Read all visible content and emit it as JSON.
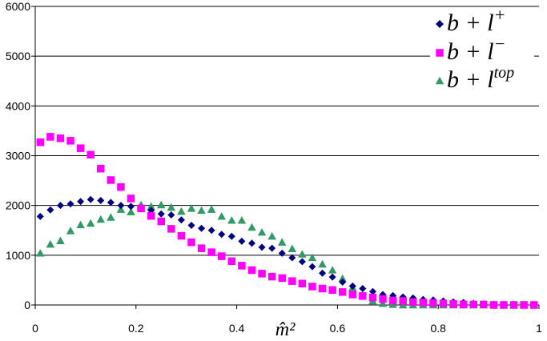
{
  "chart_data": {
    "type": "scatter",
    "title": "",
    "xlabel": "m̂²",
    "ylabel": "",
    "xlim": [
      0,
      1
    ],
    "ylim": [
      0,
      6000
    ],
    "xticks": [
      "0",
      "0.2",
      "0.4",
      "0.6",
      "0.8",
      "1"
    ],
    "yticks": [
      "0",
      "1000",
      "2000",
      "3000",
      "4000",
      "5000",
      "6000"
    ],
    "grid": "horizontal",
    "legend_position": "top-right",
    "series": [
      {
        "name": "b + l+",
        "legend": {
          "base": "b + l",
          "sup": "+"
        },
        "color": "#000080",
        "marker": "diamond",
        "x": [
          0.01,
          0.03,
          0.05,
          0.07,
          0.09,
          0.11,
          0.13,
          0.15,
          0.17,
          0.19,
          0.21,
          0.23,
          0.25,
          0.27,
          0.29,
          0.31,
          0.33,
          0.35,
          0.37,
          0.39,
          0.41,
          0.43,
          0.45,
          0.47,
          0.49,
          0.51,
          0.53,
          0.55,
          0.57,
          0.59,
          0.61,
          0.63,
          0.65,
          0.67,
          0.69,
          0.71,
          0.73,
          0.75,
          0.77,
          0.79,
          0.81,
          0.83,
          0.85,
          0.87,
          0.89,
          0.91,
          0.93,
          0.95,
          0.97,
          0.99
        ],
        "y": [
          1780,
          1910,
          2000,
          2030,
          2080,
          2120,
          2100,
          2060,
          2000,
          1980,
          1940,
          1900,
          1830,
          1810,
          1710,
          1600,
          1540,
          1500,
          1420,
          1380,
          1280,
          1240,
          1160,
          1140,
          1040,
          950,
          870,
          770,
          640,
          560,
          460,
          380,
          330,
          270,
          210,
          190,
          160,
          140,
          110,
          100,
          80,
          60,
          50,
          30,
          20,
          10,
          10,
          10,
          0,
          0
        ]
      },
      {
        "name": "b + l-",
        "legend": {
          "base": "b + l",
          "sup": "−"
        },
        "color": "#ff00ff",
        "marker": "square",
        "x": [
          0.01,
          0.03,
          0.05,
          0.07,
          0.09,
          0.11,
          0.13,
          0.15,
          0.17,
          0.19,
          0.21,
          0.23,
          0.25,
          0.27,
          0.29,
          0.31,
          0.33,
          0.35,
          0.37,
          0.39,
          0.41,
          0.43,
          0.45,
          0.47,
          0.49,
          0.51,
          0.53,
          0.55,
          0.57,
          0.59,
          0.61,
          0.63,
          0.65,
          0.67,
          0.69,
          0.71,
          0.73,
          0.75,
          0.77,
          0.79,
          0.81,
          0.83,
          0.85,
          0.87,
          0.89,
          0.91,
          0.93,
          0.95,
          0.97,
          0.99
        ],
        "y": [
          3270,
          3380,
          3350,
          3300,
          3150,
          3020,
          2740,
          2510,
          2370,
          2140,
          1940,
          1790,
          1680,
          1530,
          1390,
          1260,
          1140,
          1060,
          980,
          880,
          790,
          700,
          630,
          570,
          540,
          480,
          430,
          370,
          330,
          300,
          260,
          210,
          180,
          150,
          120,
          90,
          80,
          60,
          50,
          40,
          30,
          20,
          10,
          10,
          10,
          0,
          0,
          0,
          0,
          0
        ]
      },
      {
        "name": "b + ltop",
        "legend": {
          "base": "b + l",
          "sup": "top"
        },
        "color": "#339966",
        "marker": "triangle",
        "x": [
          0.01,
          0.03,
          0.05,
          0.07,
          0.09,
          0.11,
          0.13,
          0.15,
          0.17,
          0.19,
          0.21,
          0.23,
          0.25,
          0.27,
          0.29,
          0.31,
          0.33,
          0.35,
          0.37,
          0.39,
          0.41,
          0.43,
          0.45,
          0.47,
          0.49,
          0.51,
          0.53,
          0.55,
          0.57,
          0.59,
          0.61,
          0.63,
          0.65,
          0.67,
          0.69,
          0.71,
          0.73,
          0.75,
          0.77,
          0.79,
          0.81,
          0.83,
          0.85,
          0.87,
          0.89,
          0.91,
          0.93,
          0.95,
          0.97,
          0.99
        ],
        "y": [
          1040,
          1220,
          1290,
          1490,
          1610,
          1640,
          1720,
          1760,
          1920,
          1870,
          2010,
          1980,
          2010,
          1960,
          1880,
          1940,
          1900,
          1920,
          1780,
          1700,
          1700,
          1560,
          1460,
          1380,
          1260,
          1130,
          1020,
          950,
          820,
          700,
          530,
          350,
          200,
          80,
          30,
          10,
          0,
          0,
          0,
          0,
          0,
          0,
          0,
          0,
          0,
          0,
          0,
          0,
          0,
          0
        ]
      }
    ]
  }
}
